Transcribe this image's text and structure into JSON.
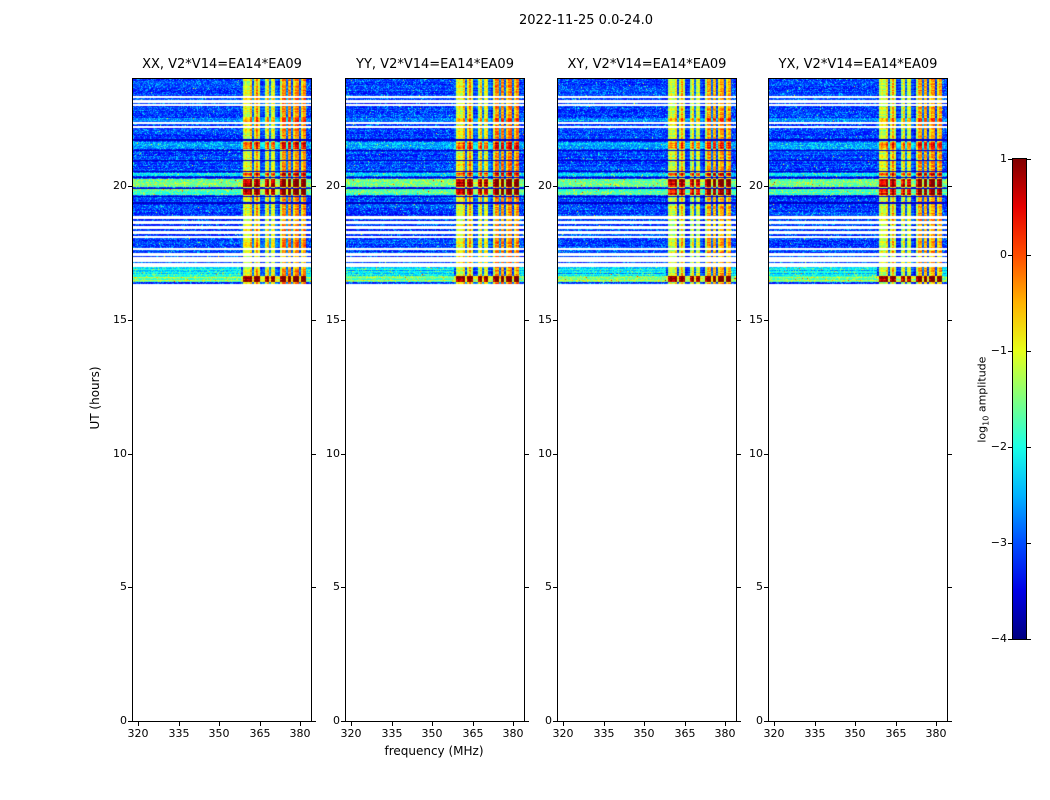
{
  "chart_data": {
    "type": "heatmap",
    "title": "2022-11-25 0.0-24.0",
    "panels": [
      {
        "title": "XX, V2*V14=EA14*EA09"
      },
      {
        "title": "YY, V2*V14=EA14*EA09"
      },
      {
        "title": "XY, V2*V14=EA14*EA09"
      },
      {
        "title": "YX, V2*V14=EA14*EA09"
      }
    ],
    "x_axis": {
      "label": "frequency (MHz)",
      "range": [
        318,
        384
      ],
      "ticks": [
        320,
        335,
        350,
        365,
        380
      ]
    },
    "y_axis": {
      "label": "UT (hours)",
      "range": [
        0,
        24
      ],
      "ticks": [
        0,
        5,
        10,
        15,
        20
      ]
    },
    "colorbar": {
      "label_prefix": "log",
      "label_sub": "10",
      "label_suffix": " amplitude",
      "range": [
        -4,
        1
      ],
      "ticks": [
        "1",
        "0",
        "−1",
        "−2",
        "−3",
        "−4"
      ]
    },
    "data": {
      "t_start": 16.35,
      "t_end": 24.0,
      "background_level": -3.35,
      "rfi_band": {
        "f_start": 358,
        "f_end": 382,
        "channel_width": 0.8
      },
      "cyan_region": {
        "t0": 16.4,
        "t1": 17.0,
        "level": -2.5
      },
      "white_gaps": [
        [
          16.96,
          17.12
        ],
        [
          17.16,
          17.34
        ],
        [
          17.4,
          17.48
        ],
        [
          17.6,
          17.7
        ],
        [
          18.04,
          18.12
        ],
        [
          18.22,
          18.31
        ],
        [
          18.4,
          18.49
        ],
        [
          18.58,
          18.68
        ],
        [
          18.76,
          18.86
        ],
        [
          22.18,
          22.25
        ],
        [
          22.3,
          22.4
        ],
        [
          22.98,
          23.05
        ],
        [
          23.12,
          23.2
        ],
        [
          23.28,
          23.38
        ]
      ],
      "dark_rows": [
        [
          19.34,
          19.39
        ],
        [
          19.6,
          19.64
        ],
        [
          19.9,
          19.94
        ],
        [
          20.3,
          20.34
        ],
        [
          20.52,
          20.57
        ],
        [
          20.92,
          20.96
        ],
        [
          21.32,
          21.36
        ],
        [
          21.7,
          21.74
        ]
      ],
      "bursts": [
        {
          "t0": 16.42,
          "t1": 16.62,
          "bg": 0.7,
          "band": 1.9
        },
        {
          "t0": 19.66,
          "t1": 19.88,
          "bg": 1.3,
          "band": 1.5
        },
        {
          "t0": 19.95,
          "t1": 20.28,
          "bg": 1.5,
          "band": 1.7
        },
        {
          "t0": 20.36,
          "t1": 20.5,
          "bg": 0.9,
          "band": 1.0
        },
        {
          "t0": 21.4,
          "t1": 21.66,
          "bg": 0.5,
          "band": 0.8
        },
        {
          "t0": 22.4,
          "t1": 22.56,
          "bg": 0.35,
          "band": 0.5
        }
      ]
    }
  }
}
